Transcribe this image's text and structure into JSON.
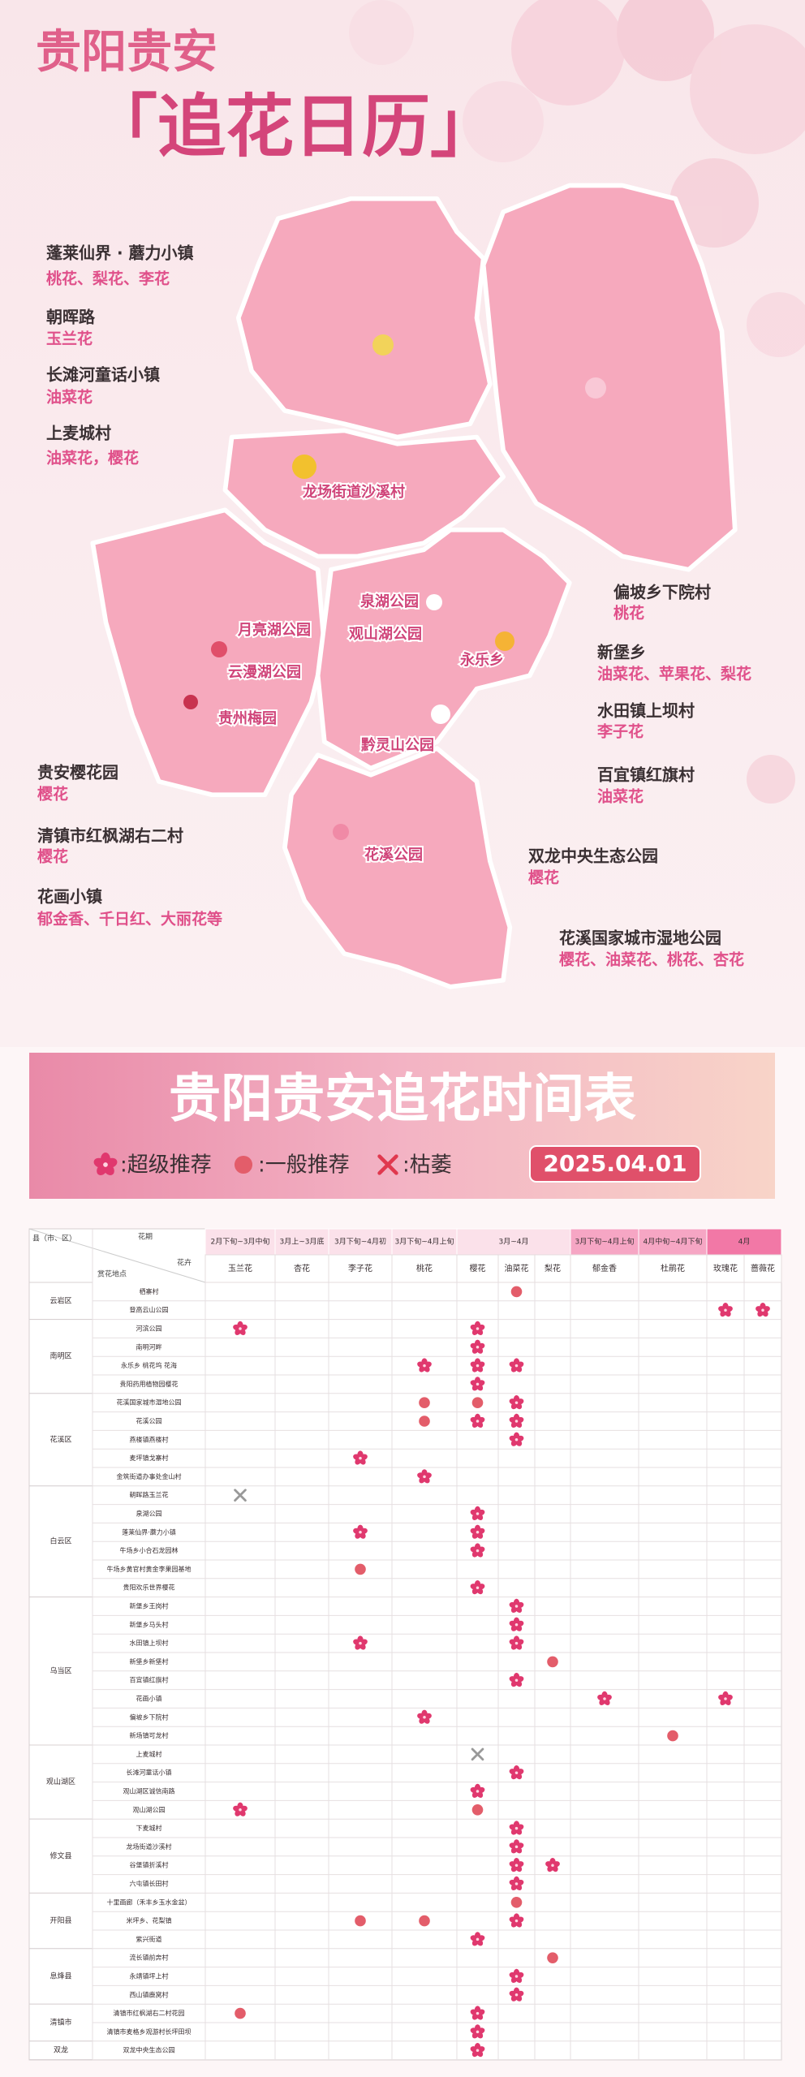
{
  "header": {
    "line1": "贵阳贵安",
    "line2": "「追花日历」"
  },
  "map": {
    "callouts": [
      {
        "place": "蓬莱仙界 · 蘑力小镇",
        "flowers": "桃花、梨花、李花"
      },
      {
        "place": "朝晖路",
        "flowers": "玉兰花"
      },
      {
        "place": "长滩河童话小镇",
        "flowers": "油菜花"
      },
      {
        "place": "上麦城村",
        "flowers": "油菜花，樱花"
      },
      {
        "place": "贵安樱花园",
        "flowers": "樱花"
      },
      {
        "place": "清镇市红枫湖右二村",
        "flowers": "樱花"
      },
      {
        "place": "花画小镇",
        "flowers": "郁金香、千日红、大丽花等"
      },
      {
        "place": "偏坡乡下院村",
        "flowers": "桃花"
      },
      {
        "place": "新堡乡",
        "flowers": "油菜花、苹果花、梨花"
      },
      {
        "place": "水田镇上坝村",
        "flowers": "李子花"
      },
      {
        "place": "百宜镇红旗村",
        "flowers": "油菜花"
      },
      {
        "place": "双龙中央生态公园",
        "flowers": "樱花"
      },
      {
        "place": "花溪国家城市湿地公园",
        "flowers": "樱花、油菜花、桃花、杏花"
      }
    ],
    "labels": [
      "龙场街道沙溪村",
      "泉湖公园",
      "观山湖公园",
      "月亮湖公园",
      "云漫湖公园",
      "贵州梅园",
      "永乐乡",
      "黔灵山公园",
      "花溪公园"
    ]
  },
  "schedule": {
    "title": "贵阳贵安追花时间表",
    "legend": [
      {
        "level": "super",
        "label": ":超级推荐"
      },
      {
        "level": "general",
        "label": ":一般推荐"
      },
      {
        "level": "wilted",
        "label": ":枯萎"
      }
    ],
    "date": "2025.04.01",
    "table": {
      "corner": {
        "district": "县（市、区）",
        "period": "花期",
        "flower": "花卉",
        "place": "赏花地点"
      },
      "periods": [
        {
          "label": "2月下旬~3月中旬",
          "flowers": [
            "玉兰花"
          ]
        },
        {
          "label": "3月上~3月底",
          "flowers": [
            "杏花"
          ]
        },
        {
          "label": "3月下旬~4月初",
          "flowers": [
            "李子花"
          ]
        },
        {
          "label": "3月下旬~4月上旬",
          "flowers": [
            "桃花"
          ]
        },
        {
          "label": "3月~4月",
          "flowers": [
            "樱花",
            "油菜花",
            "梨花"
          ]
        },
        {
          "label": "3月下旬~4月上旬",
          "flowers": [
            "郁金香"
          ]
        },
        {
          "label": "4月中旬~4月下旬",
          "flowers": [
            "杜鹃花"
          ]
        },
        {
          "label": "4月",
          "flowers": [
            "玫瑰花",
            "蔷薇花"
          ]
        }
      ],
      "districts": [
        {
          "name": "云岩区",
          "places": [
            {
              "name": "栖寨村",
              "marks": {
                "油菜花": "general"
              }
            },
            {
              "name": "登高云山公园",
              "marks": {
                "玫瑰花": "super",
                "蔷薇花": "super"
              }
            }
          ]
        },
        {
          "name": "南明区",
          "places": [
            {
              "name": "河滨公园",
              "marks": {
                "玉兰花": "super",
                "樱花": "super"
              }
            },
            {
              "name": "南明河畔",
              "marks": {
                "樱花": "super"
              }
            },
            {
              "name": "永乐乡 桃花坞 花海",
              "marks": {
                "桃花": "super",
                "樱花": "super",
                "油菜花": "super"
              }
            },
            {
              "name": "贵阳药用植物园樱花",
              "marks": {
                "樱花": "super"
              }
            }
          ]
        },
        {
          "name": "花溪区",
          "places": [
            {
              "name": "花溪国家城市湿地公园",
              "marks": {
                "桃花": "general",
                "樱花": "general",
                "油菜花": "super"
              }
            },
            {
              "name": "花溪公园",
              "marks": {
                "桃花": "general",
                "樱花": "super",
                "油菜花": "super"
              }
            },
            {
              "name": "燕楼镇燕楼村",
              "marks": {
                "油菜花": "super"
              }
            },
            {
              "name": "麦坪镇戈寨村",
              "marks": {
                "李子花": "super"
              }
            },
            {
              "name": "金筑街道办事处金山村",
              "marks": {
                "桃花": "super"
              }
            }
          ]
        },
        {
          "name": "白云区",
          "places": [
            {
              "name": "朝晖路玉兰花",
              "marks": {
                "玉兰花": "wilted"
              }
            },
            {
              "name": "泉湖公园",
              "marks": {
                "樱花": "super"
              }
            },
            {
              "name": "蓬莱仙界·蘑力小镇",
              "marks": {
                "李子花": "super",
                "樱花": "super"
              }
            },
            {
              "name": "牛场乡小合石龙园林",
              "marks": {
                "樱花": "super"
              }
            },
            {
              "name": "牛场乡黄官村黄金李果园基地",
              "marks": {
                "李子花": "general"
              }
            },
            {
              "name": "贵阳欢乐世界樱花",
              "marks": {
                "樱花": "super"
              }
            }
          ]
        },
        {
          "name": "乌当区",
          "places": [
            {
              "name": "新堡乡王岗村",
              "marks": {
                "油菜花": "super"
              }
            },
            {
              "name": "新堡乡马头村",
              "marks": {
                "油菜花": "super"
              }
            },
            {
              "name": "水田镇上坝村",
              "marks": {
                "李子花": "super",
                "油菜花": "super"
              }
            },
            {
              "name": "新堡乡新堡村",
              "marks": {
                "梨花": "general"
              }
            },
            {
              "name": "百宜镇红旗村",
              "marks": {
                "油菜花": "super"
              }
            },
            {
              "name": "花画小镇",
              "marks": {
                "郁金香": "super",
                "玫瑰花": "super"
              }
            },
            {
              "name": "偏坡乡下院村",
              "marks": {
                "桃花": "super"
              }
            },
            {
              "name": "新场镇可龙村",
              "marks": {
                "杜鹃花": "general"
              }
            }
          ]
        },
        {
          "name": "观山湖区",
          "places": [
            {
              "name": "上麦城村",
              "marks": {
                "樱花": "wilted"
              }
            },
            {
              "name": "长滩河童话小镇",
              "marks": {
                "油菜花": "super"
              }
            },
            {
              "name": "观山湖区诚信南路",
              "marks": {
                "樱花": "super"
              }
            },
            {
              "name": "观山湖公园",
              "marks": {
                "玉兰花": "super",
                "樱花": "general"
              }
            }
          ]
        },
        {
          "name": "修文县",
          "places": [
            {
              "name": "下麦城村",
              "marks": {
                "油菜花": "super"
              }
            },
            {
              "name": "龙场街道沙溪村",
              "marks": {
                "油菜花": "super"
              }
            },
            {
              "name": "谷堡镇折溪村",
              "marks": {
                "油菜花": "super",
                "梨花": "super"
              }
            },
            {
              "name": "六屯镇长田村",
              "marks": {
                "油菜花": "super"
              }
            }
          ]
        },
        {
          "name": "开阳县",
          "places": [
            {
              "name": "十里画廊（禾丰乡玉水金盆）",
              "marks": {
                "油菜花": "general"
              }
            },
            {
              "name": "米坪乡、花梨镇",
              "marks": {
                "李子花": "general",
                "桃花": "general",
                "油菜花": "super"
              }
            },
            {
              "name": "紫兴街道",
              "marks": {
                "樱花": "super"
              }
            }
          ]
        },
        {
          "name": "息烽县",
          "places": [
            {
              "name": "流长镇前奔村",
              "marks": {
                "梨花": "general"
              }
            },
            {
              "name": "永靖镇坪上村",
              "marks": {
                "油菜花": "super"
              }
            },
            {
              "name": "西山镇鹿窝村",
              "marks": {
                "油菜花": "super"
              }
            }
          ]
        },
        {
          "name": "清镇市",
          "places": [
            {
              "name": "清镇市红枫湖右二村花园",
              "marks": {
                "玉兰花": "general",
                "樱花": "super"
              }
            },
            {
              "name": "清镇市麦格乡观游村长坪田坝",
              "marks": {
                "樱花": "super"
              }
            }
          ]
        },
        {
          "name": "双龙",
          "places": [
            {
              "name": "双龙中央生态公园",
              "marks": {
                "樱花": "super"
              }
            }
          ]
        }
      ]
    }
  }
}
